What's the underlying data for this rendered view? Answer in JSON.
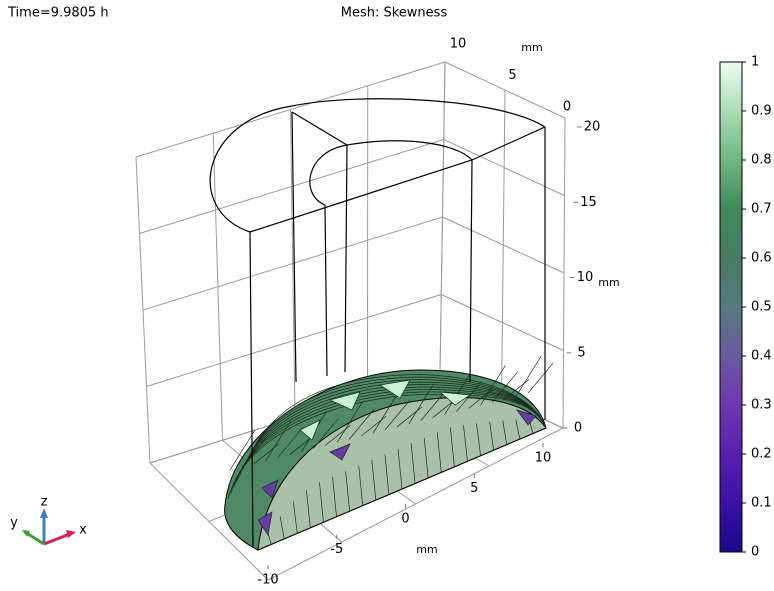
{
  "chart_data": {
    "type": "mesh3d",
    "title": "Mesh: Skewness",
    "annotation": "Time=9.9805 h",
    "xlabel": "mm",
    "ylabel": "mm",
    "zlabel": "mm",
    "xlim": [
      -10,
      10
    ],
    "xticks": [
      -10,
      -5,
      0,
      5,
      10
    ],
    "ylim": [
      0,
      10
    ],
    "yticks": [
      0,
      5,
      10
    ],
    "zlim": [
      0,
      20
    ],
    "zticks": [
      0,
      5,
      10,
      15,
      20
    ],
    "colorbar": {
      "clim": [
        0,
        1
      ],
      "ticks": [
        0,
        0.1,
        0.2,
        0.3,
        0.4,
        0.5,
        0.6,
        0.7,
        0.8,
        0.9,
        1
      ],
      "colormap": [
        "#1a0a8a",
        "#3c10a8",
        "#5a1eb0",
        "#6e38b0",
        "#6a5aa0",
        "#567a80",
        "#467c63",
        "#3e8a5a",
        "#6fb884",
        "#a9dcb3",
        "#eefcf1"
      ]
    },
    "triad": {
      "x": "x",
      "y": "y",
      "z": "z"
    }
  }
}
